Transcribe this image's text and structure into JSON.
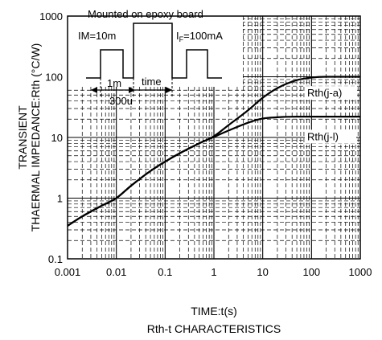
{
  "chart_data": {
    "type": "line",
    "xscale": "log",
    "yscale": "log",
    "xlim": [
      0.001,
      1000
    ],
    "ylim": [
      0.1,
      1000
    ],
    "x_ticks": [
      "0.001",
      "0.01",
      "0.1",
      "1",
      "10",
      "100",
      "1000"
    ],
    "y_ticks": [
      "0.1",
      "1",
      "10",
      "100",
      "1000"
    ],
    "xlabel": "TIME:t(s)",
    "ylabel_line1": "TRANSIENT",
    "ylabel_line2": "THAERMAL IMPEDANCE:Rth (°C/W)",
    "caption": "Rth-t CHARACTERISTICS",
    "grid": true,
    "series": [
      {
        "name": "Rth(j-a)",
        "x": [
          0.001,
          0.002,
          0.005,
          0.01,
          0.02,
          0.05,
          0.1,
          0.2,
          0.5,
          1,
          2,
          5,
          10,
          20,
          50,
          100,
          200,
          500,
          1000
        ],
        "y": [
          0.35,
          0.5,
          0.75,
          1.0,
          1.6,
          2.8,
          4.0,
          5.5,
          8.0,
          10.5,
          16,
          28,
          45,
          65,
          88,
          97,
          100,
          100,
          100
        ]
      },
      {
        "name": "Rth(j-l)",
        "x": [
          0.001,
          0.002,
          0.005,
          0.01,
          0.02,
          0.05,
          0.1,
          0.2,
          0.5,
          1,
          2,
          5,
          10,
          20,
          50,
          100,
          200,
          500,
          1000
        ],
        "y": [
          0.35,
          0.5,
          0.75,
          1.0,
          1.6,
          2.8,
          4.0,
          5.5,
          8.0,
          10.2,
          13,
          17.5,
          20.5,
          21.5,
          22,
          22,
          22,
          22,
          22
        ]
      }
    ],
    "annotations": {
      "board": "Mounted on epoxy board",
      "im": "IM=10m",
      "if_prefix": "I",
      "if_sub": "F",
      "if_value": "=100mA",
      "pulse_width": "1m",
      "pulse_gap": "300u",
      "period": "time"
    }
  }
}
